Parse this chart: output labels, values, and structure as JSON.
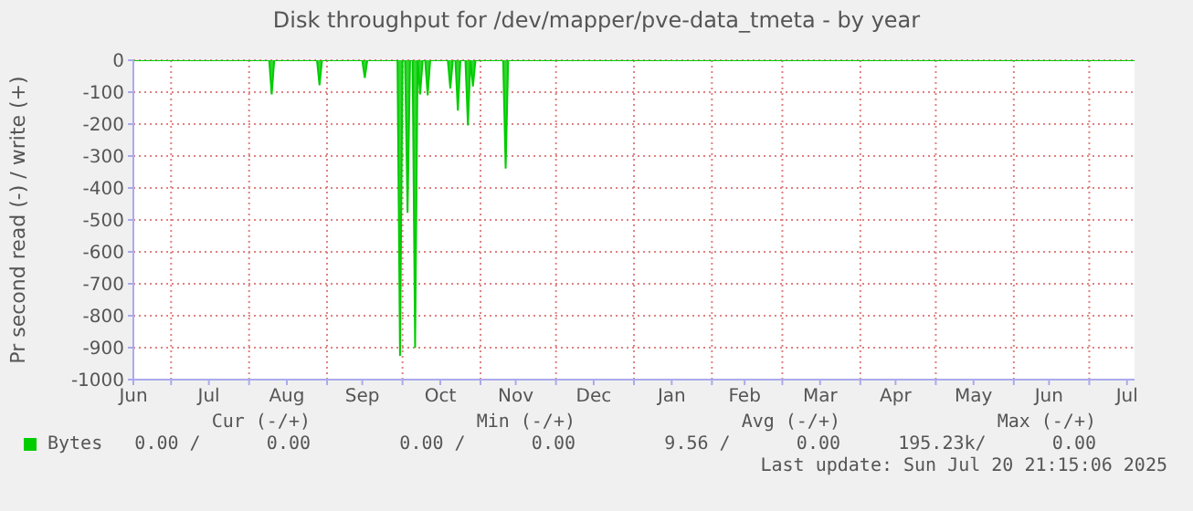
{
  "chart_data": {
    "type": "area",
    "title": "Disk throughput for /dev/mapper/pve-data_tmeta - by year",
    "ylabel": "Pr second read (-) / write (+)",
    "xlim": [
      "2024-06-16",
      "2025-07-19"
    ],
    "xticks": [
      {
        "value": "2024-06-16",
        "label": "Jun"
      },
      {
        "value": "2024-07-01",
        "label": null
      },
      {
        "value": "2024-07-16",
        "label": "Jul"
      },
      {
        "value": "2024-08-01",
        "label": null
      },
      {
        "value": "2024-08-16",
        "label": "Aug"
      },
      {
        "value": "2024-09-01",
        "label": null
      },
      {
        "value": "2024-09-15",
        "label": "Sep"
      },
      {
        "value": "2024-10-01",
        "label": null
      },
      {
        "value": "2024-10-16",
        "label": "Oct"
      },
      {
        "value": "2024-11-01",
        "label": null
      },
      {
        "value": "2024-11-15",
        "label": "Nov"
      },
      {
        "value": "2024-12-01",
        "label": null
      },
      {
        "value": "2024-12-16",
        "label": "Dec"
      },
      {
        "value": "2025-01-01",
        "label": null
      },
      {
        "value": "2025-01-16",
        "label": "Jan"
      },
      {
        "value": "2025-02-01",
        "label": null
      },
      {
        "value": "2025-02-14",
        "label": "Feb"
      },
      {
        "value": "2025-03-01",
        "label": null
      },
      {
        "value": "2025-03-16",
        "label": "Mar"
      },
      {
        "value": "2025-04-01",
        "label": null
      },
      {
        "value": "2025-04-15",
        "label": "Apr"
      },
      {
        "value": "2025-05-01",
        "label": null
      },
      {
        "value": "2025-05-16",
        "label": "May"
      },
      {
        "value": "2025-06-01",
        "label": null
      },
      {
        "value": "2025-06-15",
        "label": "Jun"
      },
      {
        "value": "2025-07-01",
        "label": null
      },
      {
        "value": "2025-07-16",
        "label": "Jul"
      }
    ],
    "ylim": [
      -1000,
      0
    ],
    "yticks": [
      -1000,
      -900,
      -800,
      -700,
      -600,
      -500,
      -400,
      -300,
      -200,
      -100,
      0
    ],
    "grid": true,
    "legend": "bottom left",
    "series": [
      {
        "name": "Bytes",
        "color": "#00cc00",
        "x": [
          "2024-06-16",
          "2024-08-09",
          "2024-08-10",
          "2024-08-11",
          "2024-08-28",
          "2024-08-29",
          "2024-08-30",
          "2024-09-15",
          "2024-09-16",
          "2024-09-17",
          "2024-09-29",
          "2024-09-30",
          "2024-10-01",
          "2024-10-02",
          "2024-10-03",
          "2024-10-04",
          "2024-10-05",
          "2024-10-06",
          "2024-10-07",
          "2024-10-08",
          "2024-10-09",
          "2024-10-10",
          "2024-10-11",
          "2024-10-12",
          "2024-10-19",
          "2024-10-20",
          "2024-10-21",
          "2024-10-22",
          "2024-10-23",
          "2024-10-24",
          "2024-10-26",
          "2024-10-27",
          "2024-10-28",
          "2024-10-29",
          "2024-10-30",
          "2024-11-10",
          "2024-11-11",
          "2024-11-12",
          "2025-07-19"
        ],
        "values": [
          0,
          0,
          -107,
          0,
          0,
          -78,
          0,
          0,
          -55,
          0,
          0,
          -926,
          0,
          0,
          -478,
          0,
          0,
          -901,
          0,
          -107,
          0,
          0,
          -110,
          0,
          0,
          -88,
          0,
          0,
          -158,
          0,
          0,
          -204,
          0,
          -82,
          0,
          0,
          -339,
          0,
          0
        ]
      }
    ],
    "annotations": [
      "Cur (-/+)",
      "Min (-/+)",
      "Avg (-/+)",
      "Max (-/+)",
      "0.00 /      0.00",
      "0.00 /      0.00",
      "9.56 /      0.00",
      "195.23k/      0.00",
      "Last update: Sun Jul 20 21:15:06 2025"
    ]
  }
}
